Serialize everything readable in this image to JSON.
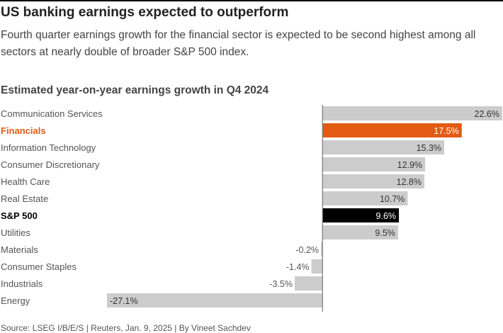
{
  "header": {
    "title": "US banking earnings expected to outperform",
    "subtitle": "Fourth quarter earnings growth for the financial sector is expected to be second highest among all sectors at nearly double of broader S&P 500 index."
  },
  "footer": {
    "source": "Source: LSEG I/B/E/S | Reuters, Jan. 9, 2025 | By Vineet Sachdev"
  },
  "colors": {
    "default_bar": "#cccccc",
    "highlight_financials": "#e35a12",
    "highlight_sp500": "#000000",
    "label_default": "#555555",
    "axis": "#777777"
  },
  "chart_data": {
    "type": "bar",
    "orientation": "horizontal",
    "title": "Estimated year-on-year earnings growth in Q4 2024",
    "xlabel": "",
    "ylabel": "",
    "xlim": [
      -27.1,
      22.6
    ],
    "unit": "%",
    "categories": [
      "Communication Services",
      "Financials",
      "Information Technology",
      "Consumer Discretionary",
      "Health Care",
      "Real Estate",
      "S&P 500",
      "Utilities",
      "Materials",
      "Consumer Staples",
      "Industrials",
      "Energy"
    ],
    "values": [
      22.6,
      17.5,
      15.3,
      12.9,
      12.8,
      10.7,
      9.6,
      9.5,
      -0.2,
      -1.4,
      -3.5,
      -27.1
    ],
    "value_labels": [
      "22.6%",
      "17.5%",
      "15.3%",
      "12.9%",
      "12.8%",
      "10.7%",
      "9.6%",
      "9.5%",
      "-0.2%",
      "-1.4%",
      "-3.5%",
      "-27.1%"
    ],
    "highlight": {
      "Financials": "orange",
      "S&P 500": "black"
    },
    "bold_categories": [
      "Financials",
      "S&P 500"
    ]
  }
}
